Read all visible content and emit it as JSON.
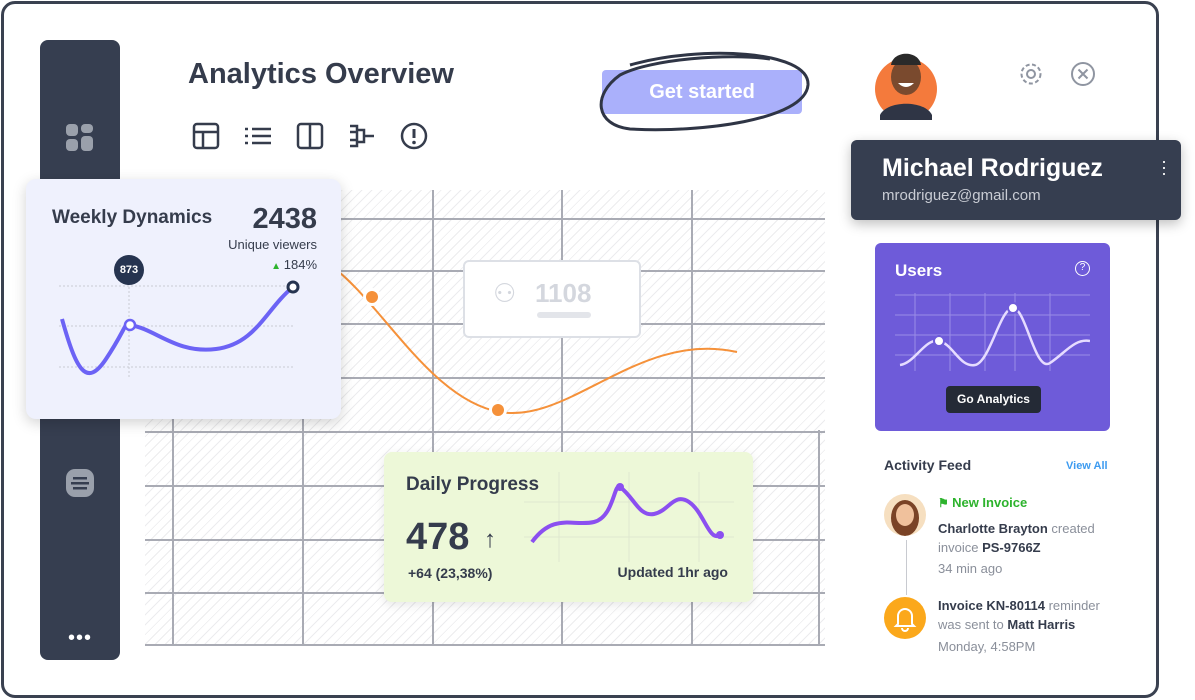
{
  "header": {
    "title": "Analytics Overview",
    "cta": "Get started"
  },
  "toolbar": [
    "table-icon",
    "list-icon",
    "columns-icon",
    "flow-icon",
    "alert-icon"
  ],
  "weekly": {
    "title": "Weekly Dynamics",
    "value": "2438",
    "sub": "Unique viewers",
    "change": "184%",
    "tooltip": "873"
  },
  "center_badge": {
    "value": "1108"
  },
  "daily": {
    "title": "Daily Progress",
    "value": "478",
    "delta": "+64 (23,38%)",
    "updated": "Updated 1hr ago"
  },
  "profile": {
    "name": "Michael Rodriguez",
    "email": "mrodriguez@gmail.com"
  },
  "users": {
    "title": "Users",
    "button": "Go Analytics"
  },
  "activity": {
    "title": "Activity Feed",
    "view_all": "View All",
    "items": [
      {
        "tag": "New Invoice",
        "actor": "Charlotte Brayton",
        "text1": " created invoice ",
        "ref": "PS-9766Z",
        "time": "34  min ago"
      },
      {
        "ref": "Invoice KN-80114",
        "text1": " reminder was sent to ",
        "actor": "Matt Harris",
        "time": "Monday, 4:58PM"
      }
    ]
  },
  "colors": {
    "sidebar": "#363e50",
    "accent": "#6e5bd9",
    "orange": "#f5913a",
    "green": "#2db32d",
    "link": "#3d9bf0"
  }
}
